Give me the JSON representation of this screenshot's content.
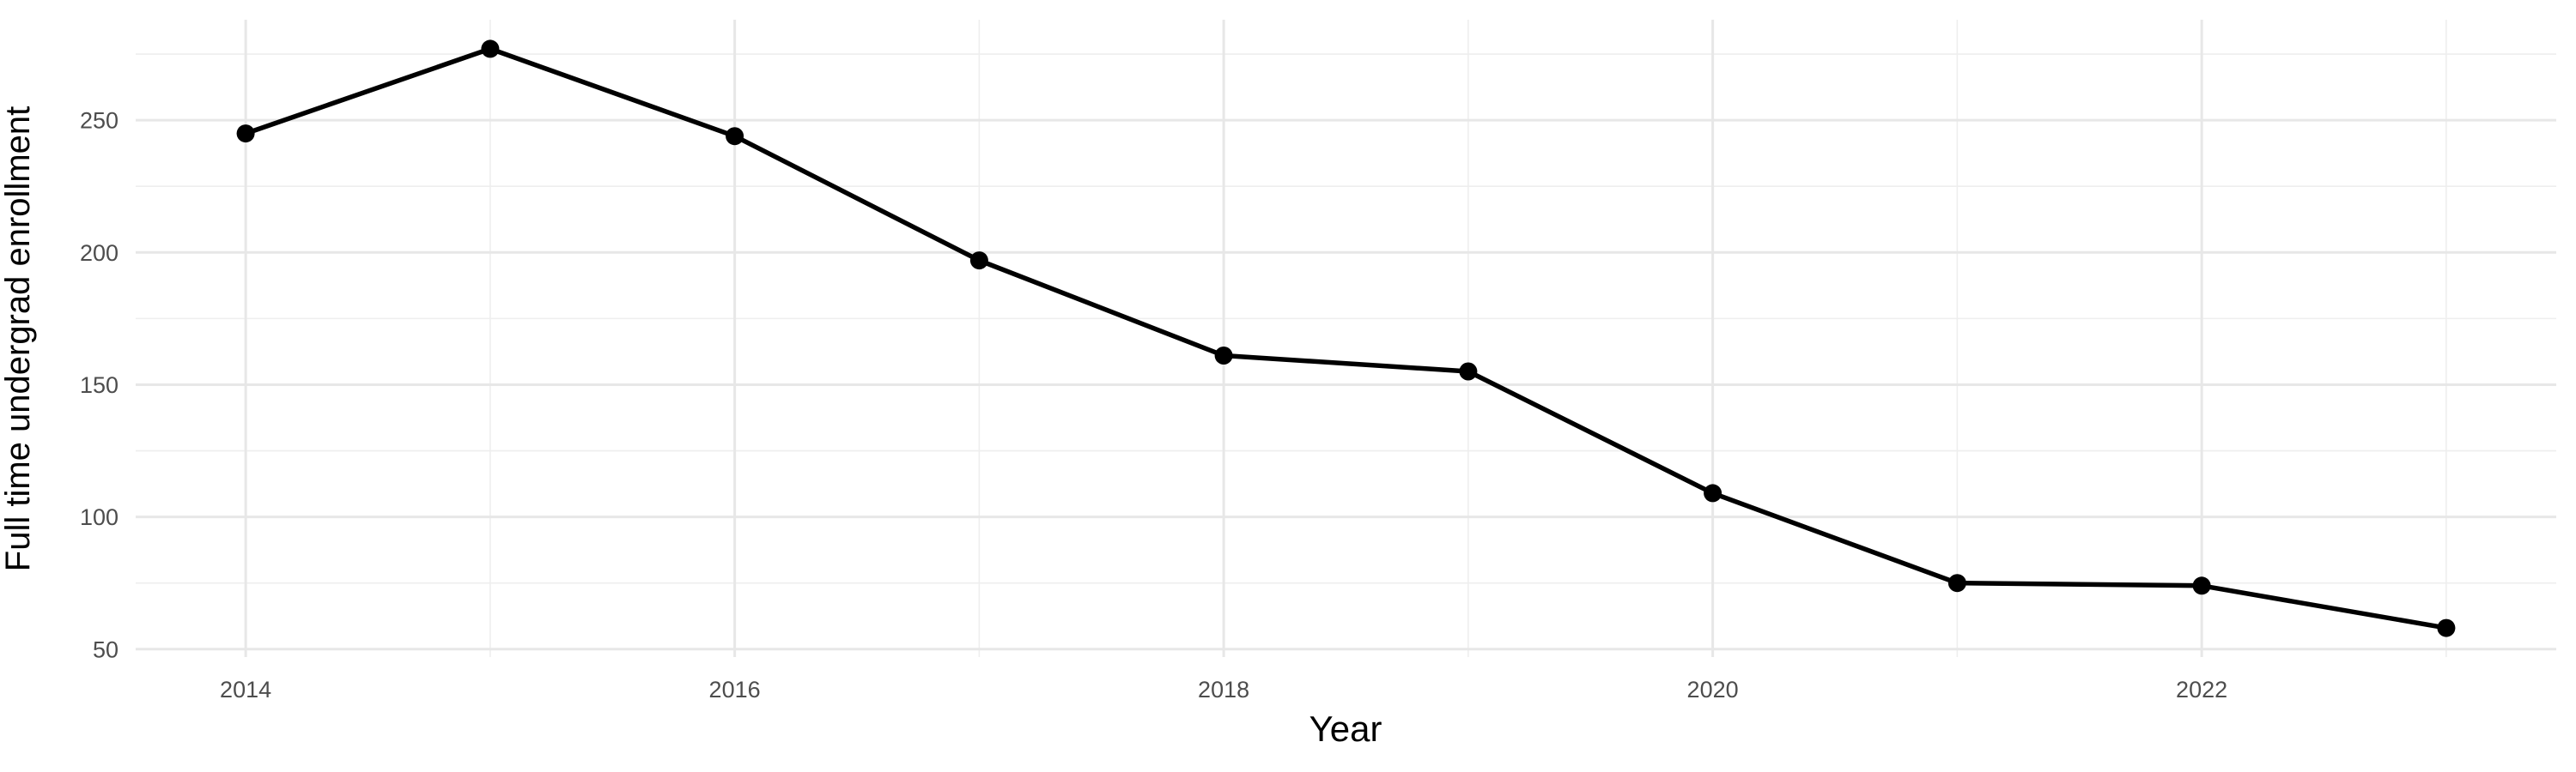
{
  "chart_data": {
    "type": "line",
    "title": "",
    "xlabel": "Year",
    "ylabel": "Full time undergrad enrollment",
    "x": [
      2014,
      2015,
      2016,
      2017,
      2018,
      2019,
      2020,
      2021,
      2022,
      2023
    ],
    "series": [
      {
        "name": "Full time undergrad enrollment",
        "values": [
          245,
          277,
          244,
          197,
          161,
          155,
          109,
          75,
          74,
          58
        ]
      }
    ],
    "x_major_ticks": [
      2014,
      2016,
      2018,
      2020,
      2022
    ],
    "x_minor_gridlines": [
      2015,
      2017,
      2019,
      2021,
      2023
    ],
    "y_major_ticks": [
      50,
      100,
      150,
      200,
      250
    ],
    "y_minor_gridlines": [
      75,
      125,
      175,
      225,
      275
    ],
    "xlim": [
      2013.55,
      2023.45
    ],
    "ylim": [
      47,
      288
    ],
    "grid": "on",
    "legend": "none",
    "marker": "filled-circle",
    "colors": {
      "line": "#000000",
      "point": "#000000",
      "grid_major": "#e7e7e7",
      "grid_minor": "#eeeeee",
      "tick_label": "#4d4d4d",
      "axis_title": "#000000",
      "background": "#ffffff"
    }
  }
}
